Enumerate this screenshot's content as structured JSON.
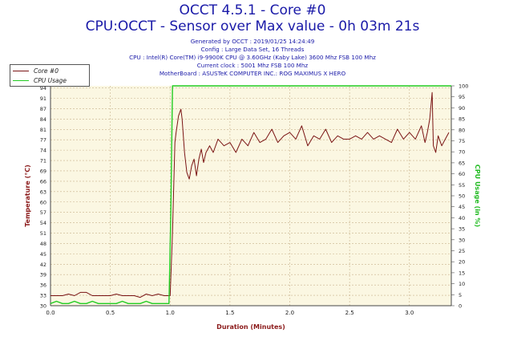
{
  "header": {
    "title": "OCCT 4.5.1 - Core #0",
    "subtitle": "CPU:OCCT - Sensor over Max value - 0h 03m 21s",
    "generated": "Generated by OCCT : 2019/01/25 14:24:49",
    "config": "Config : Large Data Set, 16 Threads",
    "cpu": "CPU : Intel(R) Core(TM) i9-9900K CPU @ 3.60GHz (Kaby Lake) 3600 Mhz FSB 100 Mhz",
    "clock": "Current clock : 5001 Mhz FSB 100 Mhz",
    "motherboard": "MotherBoard : ASUSTeK COMPUTER INC.: ROG MAXIMUS X HERO"
  },
  "colors": {
    "core": "#7a1414",
    "cpu_usage": "#22cc22",
    "plot_bg": "#fbf7e2",
    "grid": "#c8b28c",
    "header_text": "#1a1aa8",
    "axis_label_left": "#8b1a1a",
    "axis_label_right": "#22bb22"
  },
  "chart_data": {
    "type": "line",
    "xlabel": "Duration (Minutes)",
    "ylabel": "Temperature (°C)",
    "y2label": "CPU Usage (in %)",
    "xlim": [
      0,
      3.35
    ],
    "ylim": [
      30,
      96
    ],
    "y2lim": [
      0,
      100
    ],
    "x_ticks": [
      "0.0",
      "0.5",
      "1.0",
      "1.5",
      "2.0",
      "2.5",
      "3.0"
    ],
    "y_ticks": [
      "30",
      "33",
      "36",
      "39",
      "42",
      "45",
      "48",
      "51",
      "54",
      "57",
      "60",
      "63",
      "66",
      "69",
      "71",
      "74",
      "77",
      "81",
      "84",
      "87",
      "91",
      "94"
    ],
    "y2_ticks": [
      "0",
      "5",
      "10",
      "15",
      "20",
      "25",
      "30",
      "35",
      "40",
      "45",
      "50",
      "55",
      "60",
      "65",
      "70",
      "75",
      "80",
      "85",
      "90",
      "95",
      "100"
    ],
    "legend_placement": "top-left",
    "grid": true,
    "series": [
      {
        "name": "Core #0",
        "axis": "left",
        "x": [
          0,
          0.05,
          0.1,
          0.15,
          0.2,
          0.25,
          0.3,
          0.35,
          0.4,
          0.45,
          0.5,
          0.55,
          0.6,
          0.65,
          0.7,
          0.75,
          0.8,
          0.85,
          0.9,
          0.95,
          1.0,
          1.02,
          1.04,
          1.05,
          1.07,
          1.09,
          1.1,
          1.12,
          1.14,
          1.16,
          1.18,
          1.2,
          1.22,
          1.24,
          1.26,
          1.28,
          1.3,
          1.33,
          1.36,
          1.4,
          1.45,
          1.5,
          1.55,
          1.6,
          1.65,
          1.7,
          1.75,
          1.8,
          1.85,
          1.9,
          1.95,
          2.0,
          2.05,
          2.1,
          2.15,
          2.2,
          2.25,
          2.3,
          2.35,
          2.4,
          2.45,
          2.5,
          2.55,
          2.6,
          2.65,
          2.7,
          2.75,
          2.8,
          2.85,
          2.9,
          2.95,
          3.0,
          3.05,
          3.1,
          3.13,
          3.15,
          3.17,
          3.19,
          3.2,
          3.22,
          3.24,
          3.27,
          3.3,
          3.33
        ],
        "values": [
          33,
          33,
          33,
          33.5,
          33,
          34,
          34,
          33,
          33,
          33,
          33,
          33.5,
          33,
          33,
          33,
          32.5,
          33.5,
          33,
          33.5,
          33,
          33,
          52,
          79,
          82,
          87,
          89,
          86,
          76,
          70,
          68,
          72,
          74,
          69,
          74,
          77,
          73,
          76,
          78,
          76,
          80,
          78,
          79,
          76,
          80,
          78,
          82,
          79,
          80,
          83,
          79,
          81,
          82,
          80,
          84,
          78,
          81,
          80,
          83,
          79,
          81,
          80,
          80,
          81,
          80,
          82,
          80,
          81,
          80,
          79,
          83,
          80,
          82,
          80,
          84,
          79,
          82,
          86,
          94,
          78,
          76,
          81,
          78,
          80,
          82
        ]
      },
      {
        "name": "CPU Usage",
        "axis": "right",
        "x": [
          0,
          0.05,
          0.1,
          0.15,
          0.2,
          0.25,
          0.3,
          0.35,
          0.4,
          0.45,
          0.5,
          0.55,
          0.6,
          0.65,
          0.7,
          0.75,
          0.8,
          0.85,
          0.9,
          0.95,
          0.99,
          1.005,
          1.02,
          1.5,
          2.0,
          2.5,
          3.0,
          3.35
        ],
        "values": [
          1,
          2,
          1,
          1,
          2,
          1,
          1,
          2,
          1,
          1,
          1,
          1,
          2,
          1,
          1,
          1,
          2,
          1,
          1,
          1,
          1,
          40,
          100,
          100,
          100,
          100,
          100,
          100
        ]
      }
    ]
  }
}
